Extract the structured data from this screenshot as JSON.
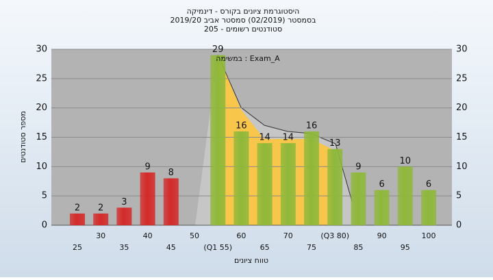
{
  "chart_data": {
    "type": "bar",
    "title": [
      "היסטוגרמת ציונים בקורס - דינמיקה",
      "בסמסטר  (02/2019)  סמסטר אביב 2019/20",
      "סטודנטים רשומים - 205"
    ],
    "annotation": "במשימה : Exam_A",
    "x_label": "טווח ציונים",
    "y_label": "מספר סטודנטים",
    "categories": [
      "25",
      "30",
      "35",
      "40",
      "45",
      "50",
      "(Q1 55)",
      "60",
      "65",
      "70",
      "75",
      "(Q3 80)",
      "85",
      "90",
      "95",
      "100"
    ],
    "values": [
      2,
      2,
      3,
      9,
      8,
      null,
      29,
      16,
      14,
      14,
      16,
      13,
      9,
      6,
      10,
      6
    ],
    "colors": [
      "#d42a2a",
      "#d42a2a",
      "#d42a2a",
      "#d42a2a",
      "#d42a2a",
      "#d42a2a",
      "#8fb83a",
      "#8fb83a",
      "#8fb83a",
      "#8fb83a",
      "#8fb83a",
      "#8fb83a",
      "#8fb83a",
      "#8fb83a",
      "#8fb83a",
      "#8fb83a"
    ],
    "ylim": [
      0,
      30
    ],
    "yticks": [
      0,
      5,
      10,
      15,
      20,
      25,
      30
    ],
    "grid": true
  }
}
